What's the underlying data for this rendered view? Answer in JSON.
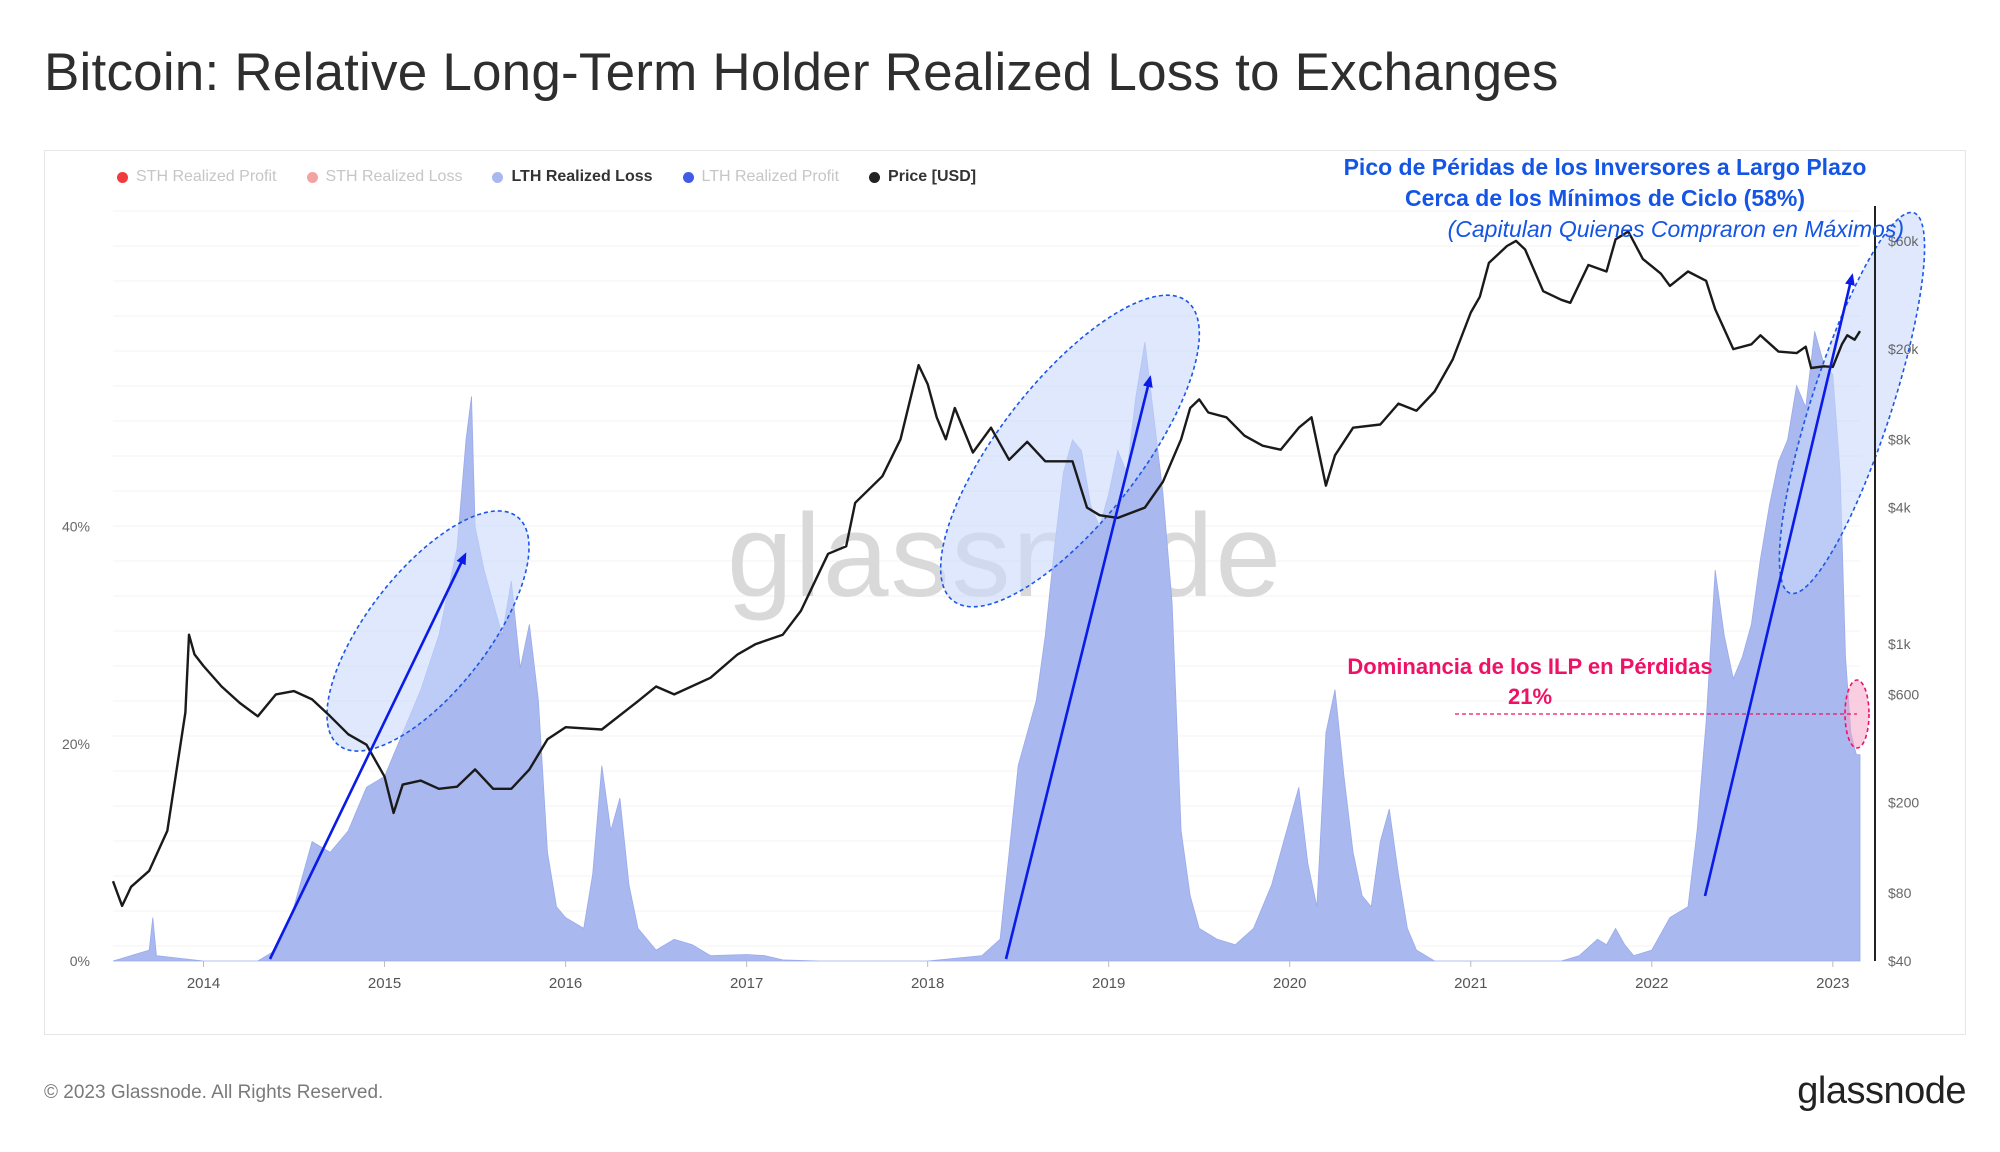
{
  "title": "Bitcoin: Relative Long-Term Holder Realized Loss to Exchanges",
  "footer": "© 2023 Glassnode. All Rights Reserved.",
  "brand": "glassnode",
  "watermark": "glassnode",
  "colors": {
    "lth_area": "#a9b8ef",
    "price_line": "#1a1a1a",
    "arrow": "#0a1be8",
    "ellipse_fill": "#c9d9fb",
    "ellipse_stroke": "#1c57e6",
    "annotation_blue": "#1555e6",
    "annotation_pink": "#ee1166"
  },
  "legend": [
    {
      "label": "STH Realized Profit",
      "color": "#f03c3c",
      "active": false
    },
    {
      "label": "STH Realized Loss",
      "color": "#f4a3a3",
      "active": false
    },
    {
      "label": "LTH Realized Loss",
      "color": "#a9b8ef",
      "active": true
    },
    {
      "label": "LTH Realized Profit",
      "color": "#3f5be8",
      "active": false
    },
    {
      "label": "Price [USD]",
      "color": "#222222",
      "active": true
    }
  ],
  "annotations": {
    "peak_line1": "Pico de Péridas de los Inversores a Largo Plazo",
    "peak_line2": "Cerca de los Mínimos de Ciclo (58%)",
    "peak_line3": "(Capitulan Quienes Compraron en Máximos)",
    "dominance_line1": "Dominancia de los ILP en Pérdidas",
    "dominance_line2": "21%"
  },
  "chart_data": {
    "type": "area",
    "x_range": [
      2013.5,
      2023.15
    ],
    "x_ticks": [
      "2014",
      "2015",
      "2016",
      "2017",
      "2018",
      "2019",
      "2020",
      "2021",
      "2022",
      "2023"
    ],
    "y_left": {
      "range": [
        0,
        0.7
      ],
      "ticks": [
        {
          "v": 0,
          "label": "0%"
        },
        {
          "v": 0.2,
          "label": "20%"
        },
        {
          "v": 0.4,
          "label": "40%"
        }
      ]
    },
    "y_right": {
      "scale": "log",
      "range": [
        40,
        90000
      ],
      "ticks": [
        {
          "v": 40,
          "label": "$40"
        },
        {
          "v": 80,
          "label": "$80"
        },
        {
          "v": 200,
          "label": "$200"
        },
        {
          "v": 600,
          "label": "$600"
        },
        {
          "v": 1000,
          "label": "$1k"
        },
        {
          "v": 4000,
          "label": "$4k"
        },
        {
          "v": 8000,
          "label": "$8k"
        },
        {
          "v": 20000,
          "label": "$20k"
        },
        {
          "v": 60000,
          "label": "$60k"
        }
      ]
    },
    "series": [
      {
        "name": "LTH Realized Loss",
        "axis": "left",
        "style": "area",
        "points": [
          [
            2013.5,
            0
          ],
          [
            2013.7,
            0.01
          ],
          [
            2013.72,
            0.04
          ],
          [
            2013.74,
            0.005
          ],
          [
            2014.0,
            0
          ],
          [
            2014.3,
            0
          ],
          [
            2014.4,
            0.01
          ],
          [
            2014.5,
            0.05
          ],
          [
            2014.6,
            0.11
          ],
          [
            2014.7,
            0.1
          ],
          [
            2014.8,
            0.12
          ],
          [
            2014.9,
            0.16
          ],
          [
            2015.0,
            0.17
          ],
          [
            2015.1,
            0.21
          ],
          [
            2015.2,
            0.25
          ],
          [
            2015.3,
            0.3
          ],
          [
            2015.35,
            0.34
          ],
          [
            2015.4,
            0.38
          ],
          [
            2015.45,
            0.48
          ],
          [
            2015.48,
            0.52
          ],
          [
            2015.5,
            0.4
          ],
          [
            2015.55,
            0.36
          ],
          [
            2015.6,
            0.33
          ],
          [
            2015.65,
            0.3
          ],
          [
            2015.7,
            0.35
          ],
          [
            2015.75,
            0.27
          ],
          [
            2015.8,
            0.31
          ],
          [
            2015.85,
            0.24
          ],
          [
            2015.9,
            0.1
          ],
          [
            2015.95,
            0.05
          ],
          [
            2016.0,
            0.04
          ],
          [
            2016.1,
            0.03
          ],
          [
            2016.15,
            0.08
          ],
          [
            2016.2,
            0.18
          ],
          [
            2016.25,
            0.12
          ],
          [
            2016.3,
            0.15
          ],
          [
            2016.35,
            0.07
          ],
          [
            2016.4,
            0.03
          ],
          [
            2016.5,
            0.01
          ],
          [
            2016.6,
            0.02
          ],
          [
            2016.7,
            0.015
          ],
          [
            2016.8,
            0.005
          ],
          [
            2017.0,
            0.006
          ],
          [
            2017.1,
            0.005
          ],
          [
            2017.2,
            0.001
          ],
          [
            2017.4,
            0
          ],
          [
            2018.0,
            0
          ],
          [
            2018.3,
            0.005
          ],
          [
            2018.4,
            0.02
          ],
          [
            2018.5,
            0.18
          ],
          [
            2018.6,
            0.24
          ],
          [
            2018.65,
            0.3
          ],
          [
            2018.7,
            0.38
          ],
          [
            2018.75,
            0.45
          ],
          [
            2018.8,
            0.48
          ],
          [
            2018.85,
            0.47
          ],
          [
            2018.9,
            0.42
          ],
          [
            2018.95,
            0.4
          ],
          [
            2019.0,
            0.43
          ],
          [
            2019.05,
            0.47
          ],
          [
            2019.1,
            0.45
          ],
          [
            2019.15,
            0.52
          ],
          [
            2019.2,
            0.57
          ],
          [
            2019.25,
            0.5
          ],
          [
            2019.3,
            0.43
          ],
          [
            2019.35,
            0.33
          ],
          [
            2019.4,
            0.12
          ],
          [
            2019.45,
            0.06
          ],
          [
            2019.5,
            0.03
          ],
          [
            2019.6,
            0.02
          ],
          [
            2019.7,
            0.015
          ],
          [
            2019.8,
            0.03
          ],
          [
            2019.9,
            0.07
          ],
          [
            2020.0,
            0.13
          ],
          [
            2020.05,
            0.16
          ],
          [
            2020.1,
            0.09
          ],
          [
            2020.15,
            0.05
          ],
          [
            2020.2,
            0.21
          ],
          [
            2020.25,
            0.25
          ],
          [
            2020.3,
            0.17
          ],
          [
            2020.35,
            0.1
          ],
          [
            2020.4,
            0.06
          ],
          [
            2020.45,
            0.05
          ],
          [
            2020.5,
            0.11
          ],
          [
            2020.55,
            0.14
          ],
          [
            2020.6,
            0.08
          ],
          [
            2020.65,
            0.03
          ],
          [
            2020.7,
            0.01
          ],
          [
            2020.8,
            0
          ],
          [
            2021.5,
            0
          ],
          [
            2021.6,
            0.005
          ],
          [
            2021.7,
            0.02
          ],
          [
            2021.75,
            0.015
          ],
          [
            2021.8,
            0.03
          ],
          [
            2021.85,
            0.015
          ],
          [
            2021.9,
            0.005
          ],
          [
            2022.0,
            0.01
          ],
          [
            2022.1,
            0.04
          ],
          [
            2022.2,
            0.05
          ],
          [
            2022.25,
            0.12
          ],
          [
            2022.3,
            0.22
          ],
          [
            2022.35,
            0.36
          ],
          [
            2022.4,
            0.3
          ],
          [
            2022.45,
            0.26
          ],
          [
            2022.5,
            0.28
          ],
          [
            2022.55,
            0.31
          ],
          [
            2022.6,
            0.37
          ],
          [
            2022.65,
            0.42
          ],
          [
            2022.7,
            0.46
          ],
          [
            2022.75,
            0.48
          ],
          [
            2022.8,
            0.53
          ],
          [
            2022.85,
            0.51
          ],
          [
            2022.9,
            0.58
          ],
          [
            2022.95,
            0.55
          ],
          [
            2023.0,
            0.54
          ],
          [
            2023.04,
            0.45
          ],
          [
            2023.07,
            0.28
          ],
          [
            2023.1,
            0.21
          ],
          [
            2023.13,
            0.19
          ],
          [
            2023.15,
            0.19
          ]
        ]
      },
      {
        "name": "Price [USD]",
        "axis": "right",
        "style": "line",
        "points": [
          [
            2013.5,
            90
          ],
          [
            2013.55,
            70
          ],
          [
            2013.6,
            85
          ],
          [
            2013.7,
            100
          ],
          [
            2013.8,
            150
          ],
          [
            2013.9,
            500
          ],
          [
            2013.92,
            1100
          ],
          [
            2013.95,
            900
          ],
          [
            2014.0,
            800
          ],
          [
            2014.1,
            650
          ],
          [
            2014.2,
            550
          ],
          [
            2014.3,
            480
          ],
          [
            2014.4,
            600
          ],
          [
            2014.5,
            620
          ],
          [
            2014.6,
            570
          ],
          [
            2014.7,
            480
          ],
          [
            2014.8,
            400
          ],
          [
            2014.9,
            360
          ],
          [
            2015.0,
            260
          ],
          [
            2015.05,
            180
          ],
          [
            2015.1,
            240
          ],
          [
            2015.2,
            250
          ],
          [
            2015.3,
            230
          ],
          [
            2015.4,
            235
          ],
          [
            2015.5,
            280
          ],
          [
            2015.6,
            230
          ],
          [
            2015.7,
            230
          ],
          [
            2015.8,
            280
          ],
          [
            2015.9,
            380
          ],
          [
            2016.0,
            430
          ],
          [
            2016.2,
            420
          ],
          [
            2016.4,
            560
          ],
          [
            2016.5,
            650
          ],
          [
            2016.6,
            600
          ],
          [
            2016.8,
            710
          ],
          [
            2016.95,
            900
          ],
          [
            2017.05,
            1000
          ],
          [
            2017.2,
            1100
          ],
          [
            2017.3,
            1400
          ],
          [
            2017.45,
            2500
          ],
          [
            2017.55,
            2700
          ],
          [
            2017.6,
            4200
          ],
          [
            2017.75,
            5500
          ],
          [
            2017.85,
            8000
          ],
          [
            2017.95,
            17000
          ],
          [
            2018.0,
            14000
          ],
          [
            2018.05,
            10000
          ],
          [
            2018.1,
            8000
          ],
          [
            2018.15,
            11000
          ],
          [
            2018.25,
            7000
          ],
          [
            2018.35,
            9000
          ],
          [
            2018.45,
            6500
          ],
          [
            2018.55,
            7800
          ],
          [
            2018.65,
            6400
          ],
          [
            2018.8,
            6400
          ],
          [
            2018.88,
            4000
          ],
          [
            2018.95,
            3700
          ],
          [
            2019.05,
            3600
          ],
          [
            2019.2,
            4000
          ],
          [
            2019.3,
            5200
          ],
          [
            2019.4,
            8000
          ],
          [
            2019.45,
            11000
          ],
          [
            2019.5,
            12000
          ],
          [
            2019.55,
            10500
          ],
          [
            2019.65,
            10000
          ],
          [
            2019.75,
            8300
          ],
          [
            2019.85,
            7500
          ],
          [
            2019.95,
            7200
          ],
          [
            2020.05,
            9000
          ],
          [
            2020.12,
            10000
          ],
          [
            2020.2,
            5000
          ],
          [
            2020.25,
            6800
          ],
          [
            2020.35,
            9000
          ],
          [
            2020.5,
            9300
          ],
          [
            2020.6,
            11500
          ],
          [
            2020.7,
            10700
          ],
          [
            2020.8,
            13000
          ],
          [
            2020.9,
            18000
          ],
          [
            2021.0,
            29000
          ],
          [
            2021.05,
            34000
          ],
          [
            2021.1,
            48000
          ],
          [
            2021.2,
            57000
          ],
          [
            2021.25,
            60000
          ],
          [
            2021.3,
            55000
          ],
          [
            2021.4,
            36000
          ],
          [
            2021.5,
            33000
          ],
          [
            2021.55,
            32000
          ],
          [
            2021.65,
            47000
          ],
          [
            2021.75,
            44000
          ],
          [
            2021.8,
            61000
          ],
          [
            2021.87,
            66000
          ],
          [
            2021.95,
            50000
          ],
          [
            2022.05,
            43000
          ],
          [
            2022.1,
            38000
          ],
          [
            2022.2,
            44000
          ],
          [
            2022.3,
            40000
          ],
          [
            2022.35,
            30000
          ],
          [
            2022.45,
            20000
          ],
          [
            2022.55,
            21000
          ],
          [
            2022.6,
            23000
          ],
          [
            2022.7,
            19500
          ],
          [
            2022.8,
            19200
          ],
          [
            2022.85,
            20500
          ],
          [
            2022.88,
            16500
          ],
          [
            2022.95,
            16800
          ],
          [
            2023.0,
            16700
          ],
          [
            2023.05,
            21000
          ],
          [
            2023.08,
            23000
          ],
          [
            2023.12,
            22000
          ],
          [
            2023.15,
            24000
          ]
        ]
      }
    ]
  }
}
